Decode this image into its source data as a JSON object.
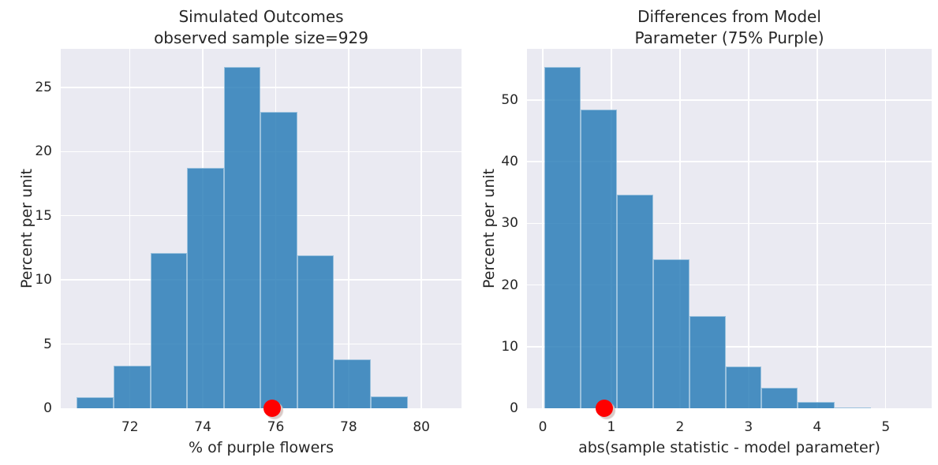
{
  "figure": {
    "background": "#ffffff",
    "plot_background": "#eaeaf2",
    "grid_color": "#ffffff",
    "text_color": "#262626",
    "bar_color": "#1f77b4",
    "bar_alpha": 0.8
  },
  "chart_data": [
    {
      "type": "bar",
      "subtype": "histogram",
      "title_lines": [
        "Simulated Outcomes",
        "observed sample size=929"
      ],
      "title": "Simulated Outcomes\nobserved sample size=929",
      "xlabel": "% of purple flowers",
      "ylabel": "Percent per unit",
      "xlim": [
        70.1,
        81.1
      ],
      "ylim": [
        0,
        28.0
      ],
      "xticks": [
        72,
        74,
        76,
        78,
        80
      ],
      "yticks": [
        0,
        5,
        10,
        15,
        20,
        25
      ],
      "grid": true,
      "legend": false,
      "bin_edges": [
        70.54,
        71.55,
        72.56,
        73.57,
        74.58,
        75.58,
        76.59,
        77.6,
        78.61,
        79.62
      ],
      "values": [
        0.86,
        3.3,
        12.1,
        18.7,
        26.6,
        23.1,
        11.9,
        3.8,
        0.95
      ],
      "bar_color": "#1f77b4",
      "bar_alpha": 0.8,
      "dot": {
        "x": 75.9,
        "y": 0,
        "color": "#ff0000",
        "label": "observed-statistic"
      }
    },
    {
      "type": "bar",
      "subtype": "histogram",
      "title_lines": [
        "Differences from Model",
        "Parameter (75% Purple)"
      ],
      "title": "Differences from Model\nParameter (75% Purple)",
      "xlabel": "abs(sample statistic - model parameter)",
      "ylabel": "Percent per unit",
      "xlim": [
        -0.23,
        5.67
      ],
      "ylim": [
        0,
        58.3
      ],
      "xticks": [
        0,
        1,
        2,
        3,
        4,
        5
      ],
      "yticks": [
        0,
        10,
        20,
        30,
        40,
        50
      ],
      "grid": true,
      "legend": false,
      "bin_edges": [
        0.02,
        0.55,
        1.08,
        1.61,
        2.14,
        2.67,
        3.19,
        3.72,
        4.25,
        4.78
      ],
      "values": [
        55.4,
        48.5,
        34.6,
        24.1,
        14.9,
        6.8,
        3.3,
        1.0,
        0.15
      ],
      "bar_color": "#1f77b4",
      "bar_alpha": 0.8,
      "dot": {
        "x": 0.9,
        "y": 0,
        "color": "#ff0000",
        "label": "observed-difference"
      }
    }
  ]
}
